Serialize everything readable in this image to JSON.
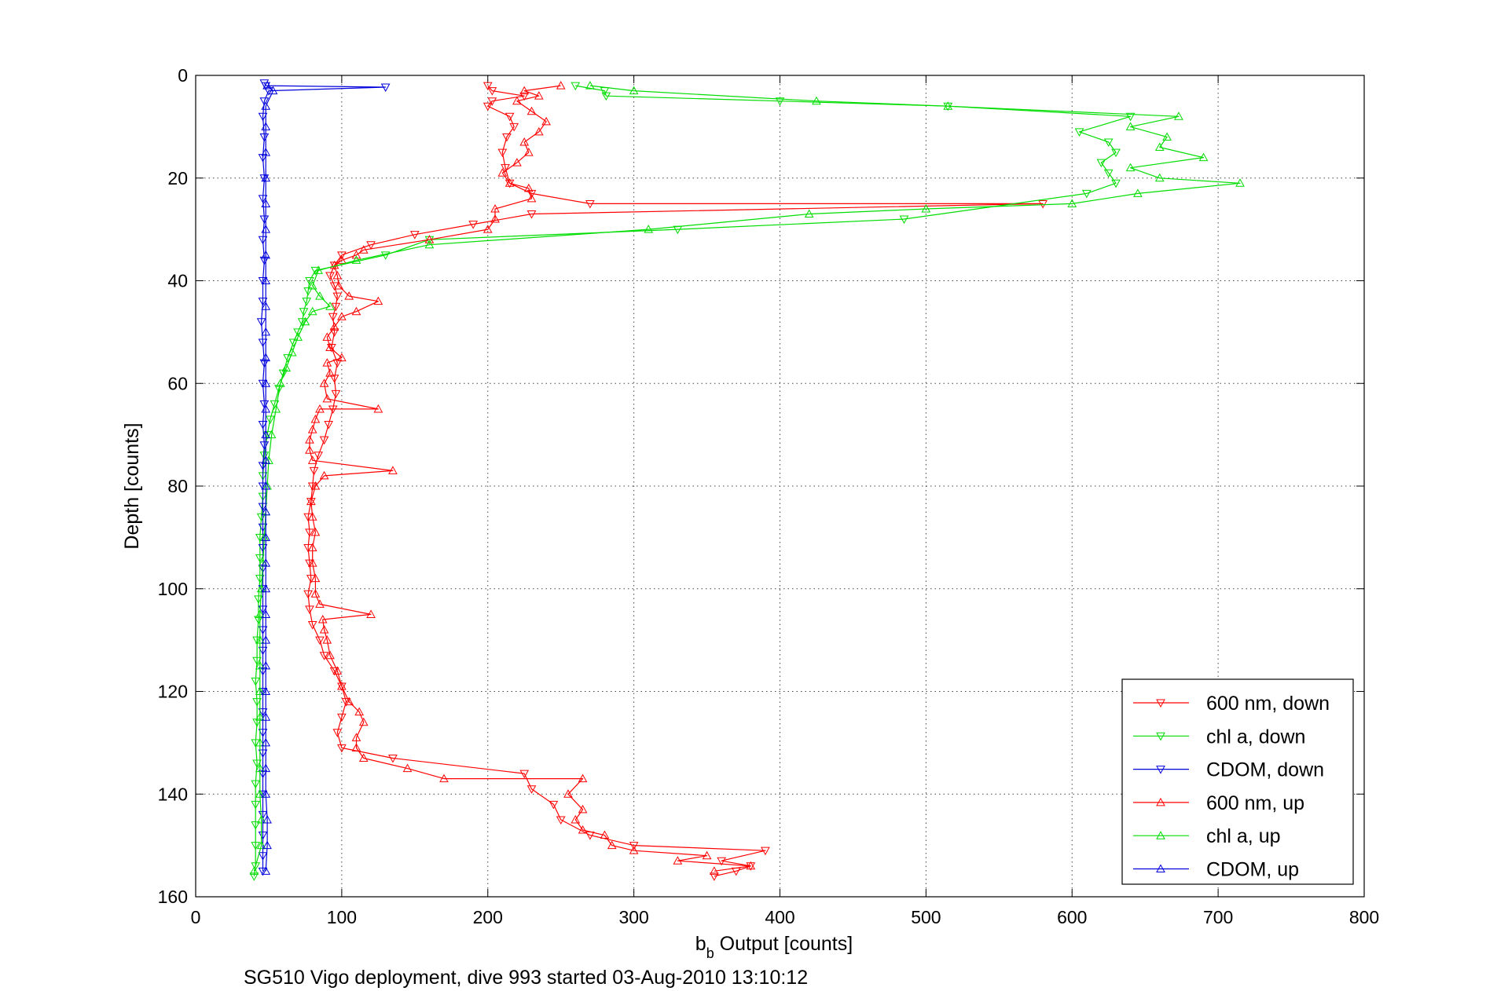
{
  "chart_data": {
    "type": "line",
    "xlabel": {
      "main": "b",
      "sub": "b",
      "rest": " Output [counts]"
    },
    "ylabel": "Depth [counts]",
    "caption": "SG510 Vigo deployment, dive 993 started 03-Aug-2010 13:10:12",
    "xlim": [
      0,
      800
    ],
    "ylim": [
      0,
      160
    ],
    "y_reversed": true,
    "xticks": [
      "0",
      "100",
      "200",
      "300",
      "400",
      "500",
      "600",
      "700",
      "800"
    ],
    "yticks": [
      "0",
      "20",
      "40",
      "60",
      "80",
      "100",
      "120",
      "140",
      "160"
    ],
    "grid": true,
    "legend_position": "bottom-right",
    "series": [
      {
        "name": "600 nm, down",
        "color": "#ff0000",
        "marker": "triangle-down",
        "points": [
          [
            200,
            2
          ],
          [
            203,
            3
          ],
          [
            225,
            4
          ],
          [
            203,
            5
          ],
          [
            200,
            6
          ],
          [
            215,
            8
          ],
          [
            218,
            10
          ],
          [
            213,
            12
          ],
          [
            210,
            15
          ],
          [
            212,
            18
          ],
          [
            215,
            21
          ],
          [
            230,
            23
          ],
          [
            270,
            25
          ],
          [
            580,
            25
          ],
          [
            230,
            27
          ],
          [
            190,
            29
          ],
          [
            150,
            31
          ],
          [
            120,
            33
          ],
          [
            100,
            35
          ],
          [
            95,
            37
          ],
          [
            92,
            39
          ],
          [
            95,
            41
          ],
          [
            97,
            43
          ],
          [
            96,
            45
          ],
          [
            94,
            47
          ],
          [
            95,
            50
          ],
          [
            93,
            53
          ],
          [
            97,
            56
          ],
          [
            95,
            59
          ],
          [
            96,
            62
          ],
          [
            94,
            65
          ],
          [
            91,
            68
          ],
          [
            88,
            71
          ],
          [
            84,
            74
          ],
          [
            81,
            77
          ],
          [
            80,
            80
          ],
          [
            79,
            83
          ],
          [
            77,
            86
          ],
          [
            78,
            89
          ],
          [
            77,
            92
          ],
          [
            78,
            95
          ],
          [
            79,
            98
          ],
          [
            77,
            101
          ],
          [
            78,
            104
          ],
          [
            80,
            107
          ],
          [
            85,
            110
          ],
          [
            88,
            113
          ],
          [
            95,
            116
          ],
          [
            100,
            119
          ],
          [
            103,
            122
          ],
          [
            100,
            125
          ],
          [
            97,
            128
          ],
          [
            100,
            131
          ],
          [
            135,
            133
          ],
          [
            225,
            136
          ],
          [
            230,
            139
          ],
          [
            245,
            142
          ],
          [
            250,
            145
          ],
          [
            270,
            148
          ],
          [
            300,
            150
          ],
          [
            390,
            151
          ],
          [
            360,
            153
          ],
          [
            380,
            154
          ],
          [
            370,
            155
          ],
          [
            355,
            156
          ]
        ]
      },
      {
        "name": "chl a, down",
        "color": "#00dd00",
        "marker": "triangle-down",
        "points": [
          [
            260,
            2
          ],
          [
            280,
            3
          ],
          [
            281,
            4
          ],
          [
            400,
            5
          ],
          [
            515,
            6
          ],
          [
            640,
            8
          ],
          [
            605,
            11
          ],
          [
            625,
            13
          ],
          [
            630,
            15
          ],
          [
            620,
            17
          ],
          [
            625,
            19
          ],
          [
            630,
            21
          ],
          [
            610,
            23
          ],
          [
            485,
            28
          ],
          [
            330,
            30
          ],
          [
            160,
            32
          ],
          [
            130,
            35
          ],
          [
            82,
            38
          ],
          [
            78,
            40
          ],
          [
            77,
            42
          ],
          [
            76,
            44
          ],
          [
            74,
            46
          ],
          [
            73,
            48
          ],
          [
            70,
            50
          ],
          [
            67,
            52
          ],
          [
            63,
            55
          ],
          [
            60,
            58
          ],
          [
            57,
            61
          ],
          [
            54,
            64
          ],
          [
            51,
            67
          ],
          [
            49,
            70
          ],
          [
            47,
            74
          ],
          [
            46,
            78
          ],
          [
            46,
            82
          ],
          [
            45,
            86
          ],
          [
            44,
            90
          ],
          [
            44,
            94
          ],
          [
            44,
            98
          ],
          [
            43,
            102
          ],
          [
            43,
            106
          ],
          [
            42,
            110
          ],
          [
            42,
            114
          ],
          [
            41,
            118
          ],
          [
            42,
            122
          ],
          [
            42,
            126
          ],
          [
            41,
            130
          ],
          [
            42,
            134
          ],
          [
            41,
            138
          ],
          [
            41,
            142
          ],
          [
            41,
            146
          ],
          [
            41,
            150
          ],
          [
            41,
            154
          ],
          [
            40,
            156
          ]
        ]
      },
      {
        "name": "CDOM, down",
        "color": "#0000dd",
        "marker": "triangle-down",
        "points": [
          [
            47,
            1.5
          ],
          [
            48,
            2
          ],
          [
            130,
            2.3
          ],
          [
            50,
            3
          ],
          [
            47,
            5
          ],
          [
            46,
            8
          ],
          [
            47,
            12
          ],
          [
            46,
            16
          ],
          [
            47,
            20
          ],
          [
            46,
            24
          ],
          [
            47,
            28
          ],
          [
            46,
            32
          ],
          [
            47,
            36
          ],
          [
            46,
            40
          ],
          [
            46,
            44
          ],
          [
            45,
            48
          ],
          [
            46,
            52
          ],
          [
            47,
            56
          ],
          [
            46,
            60
          ],
          [
            47,
            64
          ],
          [
            46,
            68
          ],
          [
            47,
            72
          ],
          [
            46,
            76
          ],
          [
            46,
            80
          ],
          [
            46,
            84
          ],
          [
            46,
            88
          ],
          [
            46,
            92
          ],
          [
            46,
            96
          ],
          [
            46,
            100
          ],
          [
            46,
            104
          ],
          [
            46,
            108
          ],
          [
            46,
            112
          ],
          [
            46,
            116
          ],
          [
            46,
            120
          ],
          [
            46,
            124
          ],
          [
            46,
            128
          ],
          [
            46,
            132
          ],
          [
            46,
            136
          ],
          [
            46,
            140
          ],
          [
            46,
            144
          ],
          [
            46,
            148
          ],
          [
            46,
            152
          ],
          [
            46,
            155
          ]
        ]
      },
      {
        "name": "600 nm, up",
        "color": "#ff0000",
        "marker": "triangle-up",
        "points": [
          [
            355,
            155
          ],
          [
            380,
            154
          ],
          [
            330,
            153
          ],
          [
            350,
            152
          ],
          [
            300,
            151
          ],
          [
            285,
            150
          ],
          [
            280,
            148
          ],
          [
            265,
            147
          ],
          [
            260,
            145
          ],
          [
            265,
            143
          ],
          [
            255,
            140
          ],
          [
            265,
            137
          ],
          [
            170,
            137
          ],
          [
            145,
            135
          ],
          [
            115,
            133
          ],
          [
            110,
            131
          ],
          [
            110,
            129
          ],
          [
            115,
            126
          ],
          [
            112,
            124
          ],
          [
            105,
            122
          ],
          [
            100,
            119
          ],
          [
            97,
            116
          ],
          [
            92,
            113
          ],
          [
            90,
            110
          ],
          [
            88,
            108
          ],
          [
            87,
            106
          ],
          [
            120,
            105
          ],
          [
            85,
            103
          ],
          [
            82,
            101
          ],
          [
            82,
            98
          ],
          [
            80,
            95
          ],
          [
            80,
            92
          ],
          [
            82,
            89
          ],
          [
            80,
            86
          ],
          [
            79,
            83
          ],
          [
            82,
            80
          ],
          [
            88,
            78
          ],
          [
            135,
            77
          ],
          [
            80,
            75
          ],
          [
            78,
            73
          ],
          [
            78,
            71
          ],
          [
            80,
            69
          ],
          [
            82,
            67
          ],
          [
            85,
            65
          ],
          [
            125,
            65
          ],
          [
            90,
            63
          ],
          [
            88,
            60
          ],
          [
            92,
            58
          ],
          [
            90,
            56
          ],
          [
            100,
            55
          ],
          [
            92,
            53
          ],
          [
            90,
            51
          ],
          [
            95,
            49
          ],
          [
            100,
            47
          ],
          [
            110,
            46
          ],
          [
            125,
            44
          ],
          [
            105,
            43
          ],
          [
            98,
            41
          ],
          [
            97,
            39
          ],
          [
            95,
            37
          ],
          [
            100,
            36
          ],
          [
            110,
            35
          ],
          [
            115,
            34
          ],
          [
            160,
            32
          ],
          [
            200,
            30
          ],
          [
            205,
            28
          ],
          [
            205,
            26
          ],
          [
            230,
            24
          ],
          [
            228,
            22
          ],
          [
            215,
            21
          ],
          [
            210,
            19
          ],
          [
            220,
            17
          ],
          [
            228,
            15
          ],
          [
            225,
            13
          ],
          [
            235,
            11
          ],
          [
            240,
            9
          ],
          [
            230,
            7
          ],
          [
            220,
            5
          ],
          [
            235,
            4
          ],
          [
            225,
            3
          ],
          [
            250,
            2
          ]
        ]
      },
      {
        "name": "chl a, up",
        "color": "#00dd00",
        "marker": "triangle-up",
        "points": [
          [
            40,
            155
          ],
          [
            45,
            150
          ],
          [
            45,
            145
          ],
          [
            44,
            140
          ],
          [
            44,
            135
          ],
          [
            44,
            130
          ],
          [
            44,
            125
          ],
          [
            44,
            120
          ],
          [
            44,
            115
          ],
          [
            44,
            110
          ],
          [
            44,
            105
          ],
          [
            45,
            100
          ],
          [
            46,
            95
          ],
          [
            47,
            90
          ],
          [
            48,
            85
          ],
          [
            49,
            80
          ],
          [
            50,
            75
          ],
          [
            52,
            70
          ],
          [
            55,
            65
          ],
          [
            58,
            60
          ],
          [
            62,
            57
          ],
          [
            66,
            54
          ],
          [
            70,
            51
          ],
          [
            75,
            48
          ],
          [
            80,
            46
          ],
          [
            92,
            45
          ],
          [
            85,
            43
          ],
          [
            80,
            41
          ],
          [
            84,
            38
          ],
          [
            110,
            36
          ],
          [
            160,
            33
          ],
          [
            310,
            30
          ],
          [
            420,
            27
          ],
          [
            500,
            26
          ],
          [
            600,
            25
          ],
          [
            645,
            23
          ],
          [
            715,
            21
          ],
          [
            660,
            20
          ],
          [
            640,
            18
          ],
          [
            690,
            16
          ],
          [
            660,
            14
          ],
          [
            665,
            12
          ],
          [
            640,
            10
          ],
          [
            673,
            8
          ],
          [
            515,
            6
          ],
          [
            425,
            5
          ],
          [
            300,
            3
          ],
          [
            270,
            2
          ]
        ]
      },
      {
        "name": "CDOM, up",
        "color": "#0000dd",
        "marker": "triangle-up",
        "points": [
          [
            48,
            155
          ],
          [
            49,
            150
          ],
          [
            49,
            145
          ],
          [
            48,
            140
          ],
          [
            48,
            135
          ],
          [
            48,
            130
          ],
          [
            48,
            125
          ],
          [
            48,
            120
          ],
          [
            48,
            115
          ],
          [
            48,
            110
          ],
          [
            48,
            105
          ],
          [
            48,
            100
          ],
          [
            48,
            95
          ],
          [
            48,
            90
          ],
          [
            48,
            85
          ],
          [
            48,
            80
          ],
          [
            48,
            75
          ],
          [
            48,
            70
          ],
          [
            48,
            65
          ],
          [
            48,
            60
          ],
          [
            48,
            55
          ],
          [
            48,
            50
          ],
          [
            48,
            45
          ],
          [
            48,
            40
          ],
          [
            48,
            35
          ],
          [
            48,
            30
          ],
          [
            48,
            25
          ],
          [
            48,
            20
          ],
          [
            48,
            15
          ],
          [
            48,
            10
          ],
          [
            48,
            6
          ],
          [
            53,
            3
          ],
          [
            49,
            2
          ]
        ]
      }
    ]
  }
}
